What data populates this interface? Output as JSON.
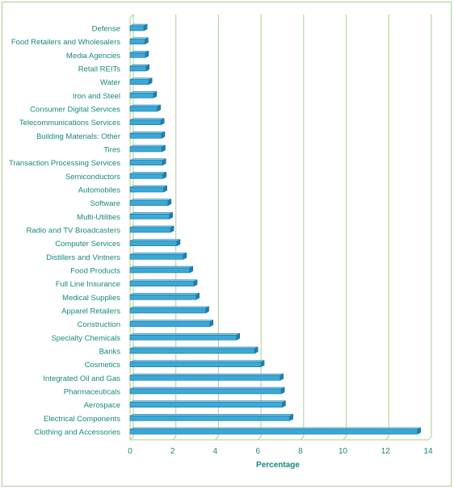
{
  "chart_data": {
    "type": "bar",
    "orientation": "horizontal",
    "title": "",
    "xlabel": "Percentage",
    "ylabel": "",
    "xlim": [
      0,
      14
    ],
    "xticks": [
      0,
      2,
      4,
      6,
      8,
      10,
      12,
      14
    ],
    "grid": "vertical",
    "legend": "none",
    "bar_color": "#3aa9d8",
    "bar_edge_color": "#1b6f96",
    "text_color": "#17897e",
    "grid_color": "#a9d18e",
    "categories": [
      "Defense",
      "Food Retailers and Wholesalers",
      "Media Agencies",
      "Retail REITs",
      "Water",
      "Iron and Steel",
      "Consumer Digital Services",
      "Telecommunications Services",
      "Building Materials: Other",
      "Tires",
      "Transaction Processing Services",
      "Semiconductors",
      "Automobiles",
      "Software",
      "Multi-Utilities",
      "Radio and TV Broadcasters",
      "Computer Services",
      "Distillers and Vintners",
      "Food Products",
      "Full Line Insurance",
      "Medical Supplies",
      "Apparel Retailers",
      "Construction",
      "Specialty Chemicals",
      "Banks",
      "Cosmetics",
      "Integrated Oil and Gas",
      "Pharmaceuticals",
      "Aerospace",
      "Electrical Components",
      "Clothing and Accessories"
    ],
    "values": [
      0.65,
      0.7,
      0.72,
      0.75,
      0.88,
      1.1,
      1.28,
      1.45,
      1.48,
      1.5,
      1.53,
      1.55,
      1.58,
      1.78,
      1.85,
      1.9,
      2.2,
      2.5,
      2.8,
      3.0,
      3.1,
      3.55,
      3.75,
      5.0,
      5.85,
      6.15,
      7.05,
      7.1,
      7.15,
      7.5,
      13.5
    ]
  }
}
